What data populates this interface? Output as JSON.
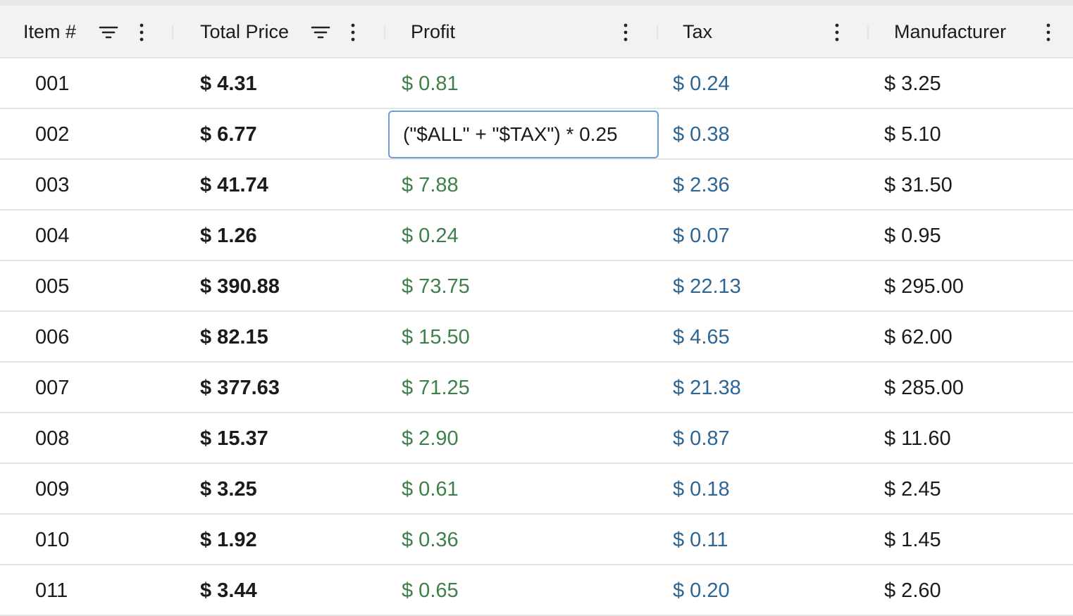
{
  "columns": [
    {
      "label": "Item #",
      "filter_icon": "filter-icon",
      "menu_icon": "kebab-menu-icon"
    },
    {
      "label": "Total Price",
      "filter_icon": "filter-icon",
      "menu_icon": "kebab-menu-icon"
    },
    {
      "label": "Profit",
      "menu_icon": "kebab-menu-icon"
    },
    {
      "label": "Tax",
      "menu_icon": "kebab-menu-icon"
    },
    {
      "label": "Manufacturer",
      "menu_icon": "kebab-menu-icon"
    }
  ],
  "colors": {
    "profit": "#3e7f4a",
    "tax": "#2e6593",
    "editor_border": "#6c9bd8"
  },
  "editor": {
    "row": 1,
    "column": "Profit",
    "value": "(\"$ALL\" + \"$TAX\") * 0.25"
  },
  "rows": [
    {
      "item": "001",
      "total": "$ 4.31",
      "profit": "$ 0.81",
      "tax": "$ 0.24",
      "manufacturer": "$ 3.25"
    },
    {
      "item": "002",
      "total": "$ 6.77",
      "profit": "",
      "tax": "$ 0.38",
      "manufacturer": "$ 5.10"
    },
    {
      "item": "003",
      "total": "$ 41.74",
      "profit": "$ 7.88",
      "tax": "$ 2.36",
      "manufacturer": "$ 31.50"
    },
    {
      "item": "004",
      "total": "$ 1.26",
      "profit": "$ 0.24",
      "tax": "$ 0.07",
      "manufacturer": "$ 0.95"
    },
    {
      "item": "005",
      "total": "$ 390.88",
      "profit": "$ 73.75",
      "tax": "$ 22.13",
      "manufacturer": "$ 295.00"
    },
    {
      "item": "006",
      "total": "$ 82.15",
      "profit": "$ 15.50",
      "tax": "$ 4.65",
      "manufacturer": "$ 62.00"
    },
    {
      "item": "007",
      "total": "$ 377.63",
      "profit": "$ 71.25",
      "tax": "$ 21.38",
      "manufacturer": "$ 285.00"
    },
    {
      "item": "008",
      "total": "$ 15.37",
      "profit": "$ 2.90",
      "tax": "$ 0.87",
      "manufacturer": "$ 11.60"
    },
    {
      "item": "009",
      "total": "$ 3.25",
      "profit": "$ 0.61",
      "tax": "$ 0.18",
      "manufacturer": "$ 2.45"
    },
    {
      "item": "010",
      "total": "$ 1.92",
      "profit": "$ 0.36",
      "tax": "$ 0.11",
      "manufacturer": "$ 1.45"
    },
    {
      "item": "011",
      "total": "$ 3.44",
      "profit": "$ 0.65",
      "tax": "$ 0.20",
      "manufacturer": "$ 2.60"
    }
  ]
}
